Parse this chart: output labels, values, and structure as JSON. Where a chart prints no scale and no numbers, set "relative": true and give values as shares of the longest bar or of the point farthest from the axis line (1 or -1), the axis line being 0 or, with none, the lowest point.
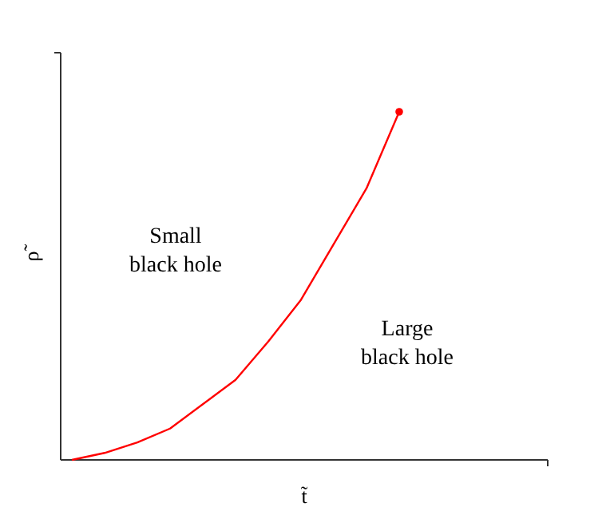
{
  "chart_data": {
    "type": "line",
    "relative": true,
    "xlabel": "t̃",
    "ylabel": "ρ̃",
    "categories": [
      null,
      null,
      null,
      null,
      null,
      null,
      null,
      null,
      null,
      null,
      null
    ],
    "series": [
      {
        "color": "#ff0000",
        "values": [
          0,
          0.02,
          0.05,
          0.09,
          0.16,
          0.23,
          0.34,
          0.46,
          0.62,
          0.78,
          1
        ]
      }
    ],
    "annotations": [
      "Small black hole",
      "Large black hole"
    ]
  }
}
